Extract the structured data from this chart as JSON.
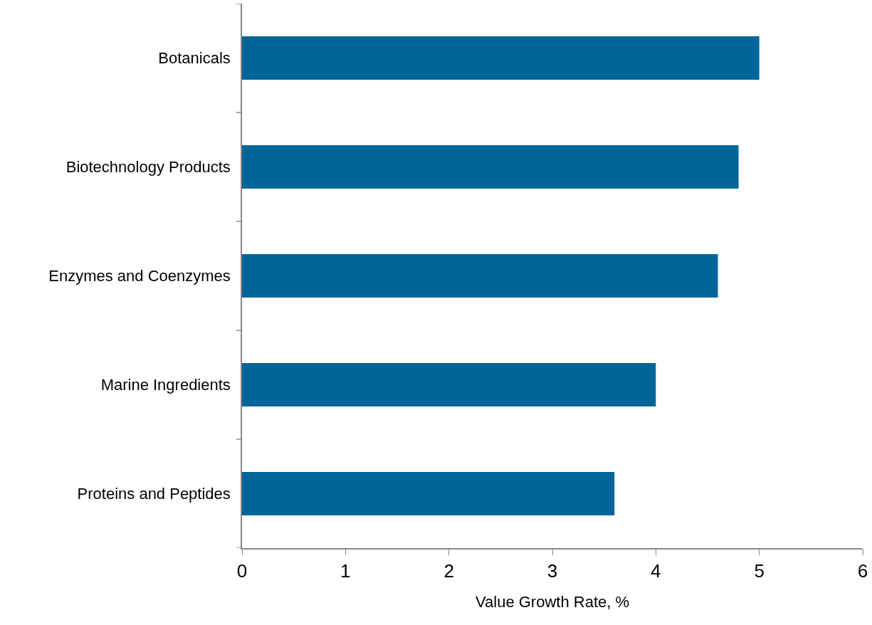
{
  "chart_data": {
    "type": "bar",
    "orientation": "horizontal",
    "xlabel": "Value Growth Rate, %",
    "categories": [
      "Botanicals",
      "Biotechnology Products",
      "Enzymes and Coenzymes",
      "Marine Ingredients",
      "Proteins and Peptides"
    ],
    "values": [
      5.0,
      4.8,
      4.6,
      4.0,
      3.6
    ],
    "color": "#006699",
    "xlim": [
      0,
      6
    ],
    "xticks": [
      0,
      1,
      2,
      3,
      4,
      5,
      6
    ],
    "grid": false
  }
}
